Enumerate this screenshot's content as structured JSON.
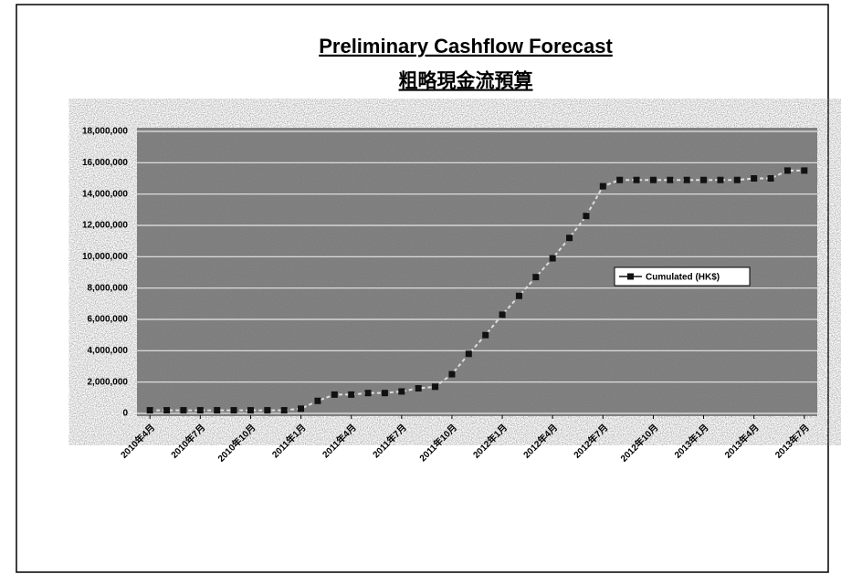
{
  "chart_data": {
    "type": "line",
    "title": "Preliminary Cashflow Forecast",
    "subtitle": "粗略現金流預算",
    "categories": [
      "2010年4月",
      null,
      null,
      "2010年7月",
      null,
      null,
      "2010年10月",
      null,
      null,
      "2011年1月",
      null,
      null,
      "2011年4月",
      null,
      null,
      "2011年7月",
      null,
      null,
      "2011年10月",
      null,
      null,
      "2012年1月",
      null,
      null,
      "2012年4月",
      null,
      null,
      "2012年7月",
      null,
      null,
      "2012年10月",
      null,
      null,
      "2013年1月",
      null,
      null,
      "2013年4月",
      null,
      null,
      "2013年7月"
    ],
    "series": [
      {
        "name": "Cumulated (HK$)",
        "color": "#111111",
        "values": [
          200000,
          200000,
          200000,
          200000,
          200000,
          200000,
          200000,
          200000,
          200000,
          300000,
          800000,
          1200000,
          1200000,
          1300000,
          1300000,
          1400000,
          1600000,
          1700000,
          2500000,
          3800000,
          5000000,
          6300000,
          7500000,
          8700000,
          9900000,
          11200000,
          12600000,
          14500000,
          14900000,
          14900000,
          14900000,
          14900000,
          14900000,
          14900000,
          14900000,
          14900000,
          15000000,
          15000000,
          15500000,
          15500000
        ]
      }
    ],
    "ylim": [
      0,
      18000000
    ],
    "yticks": [
      0,
      {
        "value": 2000000,
        "label": "2,000,000"
      },
      {
        "value": 4000000,
        "label": "4,000,000"
      },
      {
        "value": 6000000,
        "label": "6,000,000"
      },
      {
        "value": 8000000,
        "label": "8,000,000"
      },
      {
        "value": 10000000,
        "label": "10,000,000"
      },
      {
        "value": 12000000,
        "label": "12,000,000"
      },
      {
        "value": 14000000,
        "label": "14,000,000"
      },
      {
        "value": 16000000,
        "label": "16,000,000"
      },
      {
        "value": 18000000,
        "label": "18,000,000"
      }
    ],
    "grid": true,
    "legend": "right"
  }
}
